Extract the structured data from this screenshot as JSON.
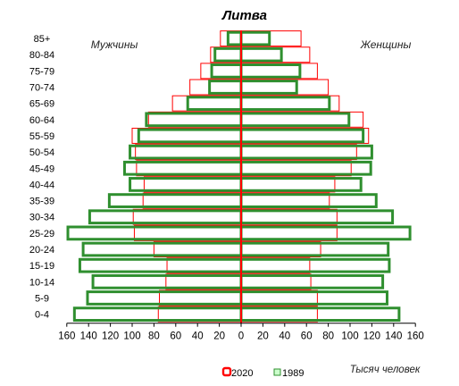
{
  "chart_data": {
    "type": "bar",
    "title": "Литва",
    "left_label": "Мужчины",
    "right_label": "Женщины",
    "unit_label": "Тысяч человек",
    "xlim": [
      -160,
      160
    ],
    "x_ticks": [
      "160",
      "140",
      "120",
      "100",
      "80",
      "60",
      "40",
      "20",
      "0",
      "20",
      "40",
      "60",
      "80",
      "100",
      "120",
      "140",
      "160"
    ],
    "categories": [
      "85+",
      "80-84",
      "75-79",
      "70-74",
      "65-69",
      "60-64",
      "55-59",
      "50-54",
      "45-49",
      "40-44",
      "35-39",
      "30-34",
      "25-29",
      "20-24",
      "15-19",
      "10-14",
      "5-9",
      "0-4"
    ],
    "series": [
      {
        "name": "1989",
        "color": "#ccffcc",
        "stroke": "#2f8f2f",
        "male": [
          12,
          24,
          27,
          29,
          49,
          87,
          94,
          102,
          107,
          102,
          121,
          139,
          159,
          145,
          148,
          136,
          141,
          153
        ],
        "female": [
          26,
          37,
          54,
          51,
          81,
          99,
          112,
          120,
          119,
          110,
          124,
          139,
          155,
          135,
          136,
          130,
          134,
          145
        ]
      },
      {
        "name": "2020",
        "color": "none",
        "stroke": "#ff0000",
        "male": [
          19,
          28,
          37,
          47,
          63,
          85,
          100,
          97,
          96,
          89,
          90,
          99,
          98,
          80,
          68,
          69,
          75,
          76
        ],
        "female": [
          55,
          63,
          70,
          80,
          90,
          112,
          117,
          106,
          101,
          86,
          81,
          88,
          88,
          73,
          63,
          64,
          70,
          70
        ]
      }
    ],
    "legend": {
      "placement": "bottom-center",
      "entries": [
        "2020",
        "1989"
      ]
    }
  }
}
